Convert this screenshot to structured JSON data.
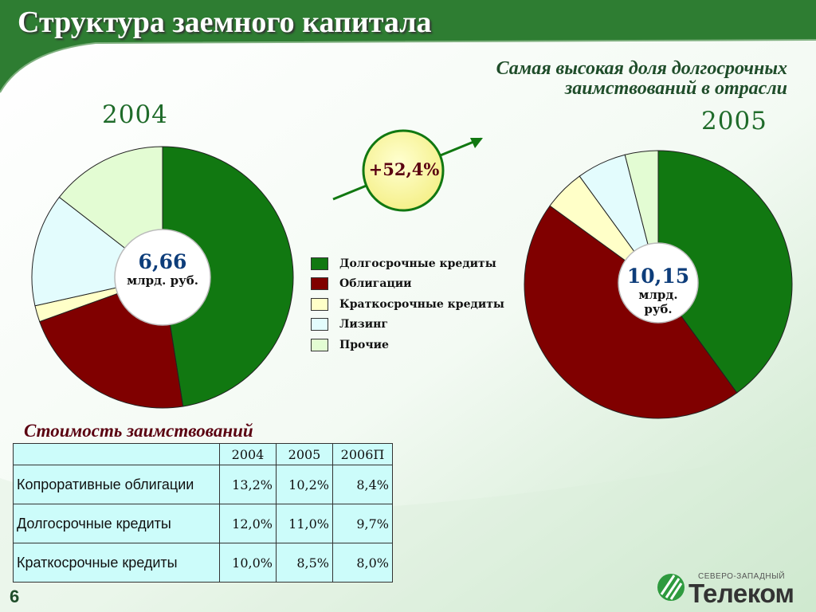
{
  "title": "Структура заемного капитала",
  "subtitle": "Самая высокая доля долгосрочных заимствований в отрасли",
  "page_number": "6",
  "growth_badge": "+52,4%",
  "logo": {
    "small_text": "СЕВЕРО-ЗАПАДНЫЙ",
    "name": "Телеком"
  },
  "colors": {
    "long_term_credits": "#117811",
    "bonds": "#800000",
    "short_term_credits": "#ffffc8",
    "leasing": "#e3fcfd",
    "other": "#e3fcd3"
  },
  "chart_data": [
    {
      "type": "pie",
      "title": "2004",
      "total_value": "6,66",
      "total_unit": "млрд. руб.",
      "categories": [
        "Долгосрочные кредиты",
        "Облигации",
        "Краткосрочные кредиты",
        "Лизинг",
        "Прочие"
      ],
      "values": [
        47.5,
        22,
        2,
        14,
        14.5
      ]
    },
    {
      "type": "pie",
      "title": "2005",
      "total_value": "10,15",
      "total_unit": "млрд. руб.",
      "categories": [
        "Долгосрочные кредиты",
        "Облигации",
        "Краткосрочные кредиты",
        "Лизинг",
        "Прочие"
      ],
      "values": [
        40,
        45,
        5,
        6,
        4
      ]
    }
  ],
  "legend": [
    {
      "label": "Долгосрочные кредиты",
      "color": "#117811"
    },
    {
      "label": "Облигации",
      "color": "#800000"
    },
    {
      "label": "Краткосрочные кредиты",
      "color": "#ffffc8"
    },
    {
      "label": "Лизинг",
      "color": "#e3fcfd"
    },
    {
      "label": "Прочие",
      "color": "#e3fcd3"
    }
  ],
  "cost_table": {
    "title": "Стоимость заимствований",
    "headers": [
      "",
      "2004",
      "2005",
      "2006П"
    ],
    "rows": [
      {
        "label": "Копроративные облигации",
        "values": [
          "13,2%",
          "10,2%",
          "8,4%"
        ]
      },
      {
        "label": "Долгосрочные кредиты",
        "values": [
          "12,0%",
          "11,0%",
          "9,7%"
        ]
      },
      {
        "label": "Краткосрочные кредиты",
        "values": [
          "10,0%",
          "8,5%",
          "8,0%"
        ]
      }
    ]
  }
}
